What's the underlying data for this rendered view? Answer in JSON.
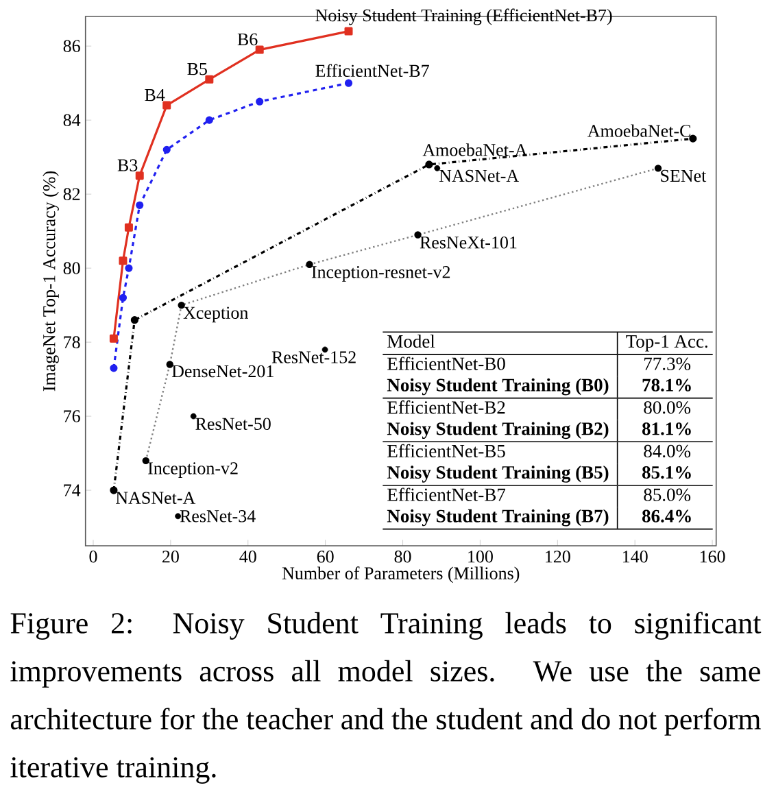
{
  "chart_data": {
    "type": "line",
    "xlabel": "Number of Parameters (Millions)",
    "ylabel": "ImageNet Top-1 Accuracy (%)",
    "xlim": [
      -2,
      161
    ],
    "ylim": [
      72.5,
      86.8
    ],
    "xticks": [
      0,
      20,
      40,
      60,
      80,
      100,
      120,
      140,
      160
    ],
    "yticks": [
      74,
      76,
      78,
      80,
      82,
      84,
      86
    ],
    "grid": false,
    "legend": false,
    "series": [
      {
        "name": "Noisy Student Training (EfficientNet-B7)",
        "color": "#e03020",
        "marker": "square",
        "line_style": "solid",
        "x": [
          5.3,
          7.7,
          9.2,
          12,
          19,
          30,
          43,
          66
        ],
        "values": [
          78.1,
          80.2,
          81.1,
          82.5,
          84.4,
          85.1,
          85.9,
          86.4
        ]
      },
      {
        "name": "EfficientNet-B7",
        "color": "#2020f0",
        "marker": "circle",
        "line_style": "dashed",
        "x": [
          5.3,
          7.7,
          9.2,
          12,
          19,
          30,
          43,
          66
        ],
        "values": [
          77.3,
          79.2,
          80.0,
          81.7,
          83.2,
          84.0,
          84.5,
          85.0
        ]
      },
      {
        "color": "#000000",
        "marker": "circle",
        "line_style": "dashdot",
        "x": [
          5.3,
          10.7,
          86.8,
          155
        ],
        "values": [
          74.0,
          78.6,
          82.8,
          83.5
        ]
      },
      {
        "color": "#808080",
        "marker": "circle",
        "line_style": "dotted",
        "x": [
          13.6,
          19.8,
          22.8,
          55.9,
          83.9,
          146
        ],
        "values": [
          74.8,
          77.4,
          79.0,
          80.1,
          80.9,
          82.7
        ]
      },
      {
        "type": "scatter",
        "color": "#000000",
        "marker": "circle",
        "x": [
          88.9,
          59.9,
          25.9,
          21.9
        ],
        "values": [
          82.7,
          77.8,
          76.0,
          73.3
        ]
      }
    ],
    "annotations": [
      {
        "text": "B3",
        "x": 12,
        "y": 82.5
      },
      {
        "text": "B4",
        "x": 19,
        "y": 84.4
      },
      {
        "text": "B5",
        "x": 30,
        "y": 85.1
      },
      {
        "text": "B6",
        "x": 43,
        "y": 85.9
      },
      {
        "text": "AmoebaNet-A",
        "x": 86.8,
        "y": 82.8
      },
      {
        "text": "NASNet-A",
        "x": 88.9,
        "y": 82.7
      },
      {
        "text": "AmoebaNet-C",
        "x": 155,
        "y": 83.5
      },
      {
        "text": "SENet",
        "x": 146,
        "y": 82.7
      },
      {
        "text": "ResNeXt-101",
        "x": 83.9,
        "y": 80.9
      },
      {
        "text": "Inception-resnet-v2",
        "x": 55.9,
        "y": 80.1
      },
      {
        "text": "Xception",
        "x": 22.8,
        "y": 79.0
      },
      {
        "text": "DenseNet-201",
        "x": 19.8,
        "y": 77.4
      },
      {
        "text": "ResNet-152",
        "x": 59.9,
        "y": 77.8
      },
      {
        "text": "ResNet-50",
        "x": 25.9,
        "y": 76.0
      },
      {
        "text": "Inception-v2",
        "x": 13.6,
        "y": 74.8
      },
      {
        "text": "NASNet-A",
        "x": 5.3,
        "y": 74.0
      },
      {
        "text": "ResNet-34",
        "x": 21.9,
        "y": 73.3
      },
      "Model",
      "Top-1 Acc.",
      "EfficientNet-B0",
      "77.3%",
      "Noisy Student Training (B0)",
      "78.1%",
      "EfficientNet-B2",
      "80.0%",
      "Noisy Student Training (B2)",
      "81.1%",
      "EfficientNet-B5",
      "84.0%",
      "Noisy Student Training (B5)",
      "85.1%",
      "EfficientNet-B7",
      "85.0%",
      "Noisy Student Training (B7)",
      "86.4%",
      "Figure 2: Noisy Student Training leads to significant improvements across all model sizes. We use the same architecture for the teacher and the student and do not perform iterative training."
    ]
  }
}
